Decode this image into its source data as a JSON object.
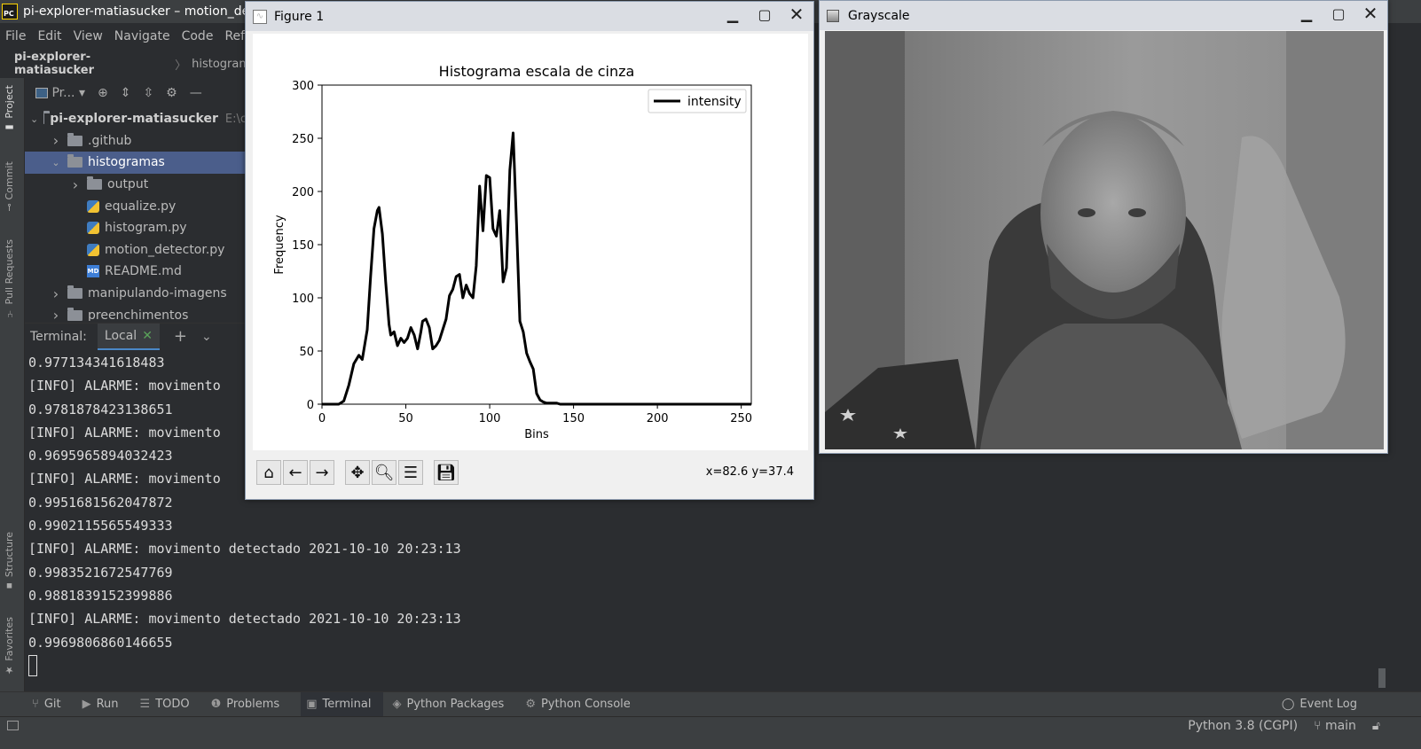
{
  "ide": {
    "title": "pi-explorer-matiasucker – motion_detector.py",
    "menu": [
      "File",
      "Edit",
      "View",
      "Navigate",
      "Code",
      "Refa"
    ],
    "breadcrumb": {
      "project": "pi-explorer-matiasucker",
      "folder": "histograma"
    },
    "left_strip": [
      "Project",
      "Commit",
      "Pull Requests",
      "Structure",
      "Favorites"
    ],
    "project_toolbar": {
      "view_label": "Pr..."
    },
    "tree": [
      {
        "label": "pi-explorer-matiasucker",
        "hint": "E:\\c",
        "indent": 0,
        "kind": "folder",
        "expanded": true
      },
      {
        "label": ".github",
        "indent": 1,
        "kind": "folder",
        "expanded": false
      },
      {
        "label": "histogramas",
        "indent": 1,
        "kind": "folder",
        "expanded": true,
        "selected": true
      },
      {
        "label": "output",
        "indent": 2,
        "kind": "folder",
        "expanded": false
      },
      {
        "label": "equalize.py",
        "indent": 2,
        "kind": "py"
      },
      {
        "label": "histogram.py",
        "indent": 2,
        "kind": "py"
      },
      {
        "label": "motion_detector.py",
        "indent": 2,
        "kind": "py"
      },
      {
        "label": "README.md",
        "indent": 2,
        "kind": "md"
      },
      {
        "label": "manipulando-imagens",
        "indent": 1,
        "kind": "folder",
        "expanded": false
      },
      {
        "label": "preenchimentos",
        "indent": 1,
        "kind": "folder",
        "expanded": false
      }
    ],
    "terminal": {
      "label": "Terminal:",
      "tab": "Local",
      "lines": [
        "0.977134341618483",
        "[INFO] ALARME: movimento",
        "0.9781878423138651",
        "[INFO] ALARME: movimento",
        "0.9695965894032423",
        "[INFO] ALARME: movimento",
        "0.9951681562047872",
        "0.9902115565549333",
        "[INFO] ALARME: movimento detectado 2021-10-10 20:23:13",
        "0.9983521672547769",
        "0.9881839152399886",
        "[INFO] ALARME: movimento detectado 2021-10-10 20:23:13",
        "0.9969806860146655"
      ]
    },
    "bottom_tabs": [
      {
        "icon": "git",
        "label": "Git"
      },
      {
        "icon": "run",
        "label": "Run"
      },
      {
        "icon": "todo",
        "label": "TODO"
      },
      {
        "icon": "problems",
        "label": "Problems"
      },
      {
        "icon": "terminal",
        "label": "Terminal",
        "active": true
      },
      {
        "icon": "packages",
        "label": "Python Packages"
      },
      {
        "icon": "console",
        "label": "Python Console"
      }
    ],
    "event_log": "Event Log",
    "status": {
      "interpreter": "Python 3.8 (CGPI)",
      "branch": "main"
    }
  },
  "figure": {
    "window_title": "Figure 1",
    "coords": "x=82.6 y=37.4",
    "toolbar": [
      "home",
      "back",
      "forward",
      "pan",
      "zoom",
      "configure",
      "save"
    ]
  },
  "chart_data": {
    "type": "line",
    "title": "Histograma escala de cinza",
    "xlabel": "Bins",
    "ylabel": "Frequency",
    "xlim": [
      0,
      256
    ],
    "ylim": [
      0,
      300
    ],
    "xticks": [
      0,
      50,
      100,
      150,
      200,
      250
    ],
    "yticks": [
      0,
      50,
      100,
      150,
      200,
      250,
      300
    ],
    "legend": "top-right",
    "series": [
      {
        "name": "intensity",
        "color": "#000000",
        "x": [
          0,
          10,
          13,
          16,
          19,
          22,
          24,
          27,
          29,
          31,
          33,
          34,
          36,
          38,
          40,
          41,
          43,
          45,
          47,
          49,
          51,
          53,
          55,
          57,
          59,
          60,
          62,
          64,
          66,
          68,
          70,
          72,
          74,
          76,
          78,
          80,
          82,
          84,
          86,
          88,
          90,
          92,
          94,
          96,
          98,
          100,
          102,
          104,
          106,
          108,
          110,
          112,
          114,
          116,
          118,
          120,
          122,
          124,
          126,
          128,
          130,
          132,
          134,
          136,
          138,
          140,
          142,
          144,
          146,
          148,
          150,
          152,
          155,
          160,
          170,
          190,
          210,
          230,
          256
        ],
        "y": [
          0,
          0,
          3,
          18,
          38,
          46,
          42,
          70,
          120,
          165,
          182,
          185,
          160,
          115,
          75,
          65,
          68,
          55,
          62,
          58,
          62,
          72,
          65,
          52,
          68,
          78,
          80,
          72,
          52,
          55,
          60,
          70,
          80,
          102,
          108,
          120,
          122,
          100,
          112,
          104,
          100,
          130,
          205,
          163,
          215,
          213,
          165,
          158,
          182,
          115,
          128,
          220,
          255,
          170,
          78,
          68,
          48,
          40,
          33,
          10,
          4,
          2,
          1,
          1,
          1,
          1,
          0,
          0,
          0,
          0,
          0,
          0,
          0,
          0,
          0,
          0,
          0,
          0,
          0
        ]
      }
    ]
  },
  "grayscale": {
    "window_title": "Grayscale"
  }
}
